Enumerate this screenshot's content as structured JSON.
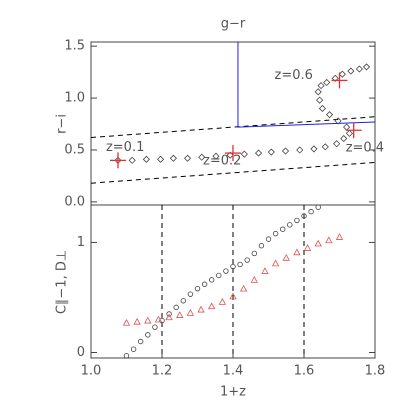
{
  "chart_data": [
    {
      "type": "scatter",
      "x_label": "g−r",
      "y_label": "r−i",
      "xlim": [
        0,
        2
      ],
      "ylim": [
        -0.03,
        1.54
      ],
      "yticks": [
        {
          "value": 0,
          "label": "0.0"
        },
        0.5,
        {
          "value": 1,
          "label": "1.0"
        },
        1.5
      ],
      "marker": "diamond",
      "color": "#444444",
      "x": [
        0.19,
        0.29,
        0.39,
        0.49,
        0.58,
        0.68,
        0.78,
        0.88,
        0.98,
        1.08,
        1.18,
        1.27,
        1.37,
        1.47,
        1.57,
        1.65,
        1.73,
        1.78,
        1.82,
        1.8,
        1.74,
        1.68,
        1.63,
        1.61,
        1.6,
        1.62,
        1.66,
        1.72,
        1.77,
        1.83,
        1.89,
        1.94
      ],
      "values": [
        0.4,
        0.4,
        0.41,
        0.41,
        0.42,
        0.42,
        0.43,
        0.44,
        0.45,
        0.46,
        0.47,
        0.48,
        0.49,
        0.5,
        0.51,
        0.53,
        0.56,
        0.61,
        0.66,
        0.72,
        0.78,
        0.84,
        0.9,
        0.98,
        1.06,
        1.12,
        1.15,
        1.19,
        1.23,
        1.26,
        1.28,
        1.3
      ],
      "annotations": [
        {
          "text": "z=0.1",
          "x": 0.19,
          "y": 0.4
        },
        {
          "text": "z=0.2",
          "x": 1.0,
          "y": 0.47
        },
        {
          "text": "z=0.6",
          "x": 1.75,
          "y": 1.17
        },
        {
          "text": "z=0.4",
          "x": 1.85,
          "y": 0.69
        }
      ],
      "annotation_color": "#e03030",
      "lines": [
        {
          "x": [
            0,
            2
          ],
          "y": [
            0.18,
            0.38
          ],
          "color": "#000000",
          "dashed": true
        },
        {
          "x": [
            0,
            2
          ],
          "y": [
            0.62,
            0.82
          ],
          "color": "#000000",
          "dashed": true
        },
        {
          "x": [
            1.035,
            1.035,
            2
          ],
          "y": [
            1.54,
            0.72,
            0.77
          ],
          "color": "#2020e0",
          "dashed": false
        }
      ]
    },
    {
      "type": "scatter",
      "x_label": "1+z",
      "y_label": "C∥−1, D⊥",
      "xlim": [
        1,
        1.8
      ],
      "ylim": [
        -0.05,
        1.34
      ],
      "xticks": [
        {
          "value": 1,
          "label": "1.0"
        },
        1.2,
        1.4,
        1.6,
        1.8
      ],
      "yticks": [
        0,
        1
      ],
      "vlines": [
        1.2,
        1.4,
        1.6
      ],
      "series": [
        {
          "marker": "circle",
          "color": "#444444",
          "x": [
            1.1,
            1.12,
            1.14,
            1.16,
            1.18,
            1.2,
            1.22,
            1.24,
            1.26,
            1.28,
            1.3,
            1.32,
            1.34,
            1.36,
            1.38,
            1.4,
            1.42,
            1.44,
            1.46,
            1.48,
            1.5,
            1.52,
            1.54,
            1.56,
            1.58,
            1.6,
            1.62,
            1.64
          ],
          "values": [
            -0.03,
            0.03,
            0.1,
            0.16,
            0.23,
            0.29,
            0.35,
            0.41,
            0.47,
            0.53,
            0.58,
            0.62,
            0.66,
            0.7,
            0.74,
            0.78,
            0.8,
            0.84,
            0.9,
            0.97,
            1.03,
            1.08,
            1.12,
            1.16,
            1.2,
            1.24,
            1.28,
            1.32
          ]
        },
        {
          "marker": "triangle",
          "color": "#e05050",
          "x": [
            1.1,
            1.13,
            1.16,
            1.19,
            1.22,
            1.25,
            1.28,
            1.31,
            1.34,
            1.37,
            1.4,
            1.43,
            1.46,
            1.49,
            1.52,
            1.55,
            1.58,
            1.61,
            1.64,
            1.67,
            1.7
          ],
          "values": [
            0.27,
            0.28,
            0.29,
            0.3,
            0.32,
            0.34,
            0.36,
            0.39,
            0.42,
            0.46,
            0.51,
            0.58,
            0.66,
            0.74,
            0.81,
            0.86,
            0.91,
            0.95,
            0.99,
            1.02,
            1.05
          ]
        }
      ]
    }
  ]
}
